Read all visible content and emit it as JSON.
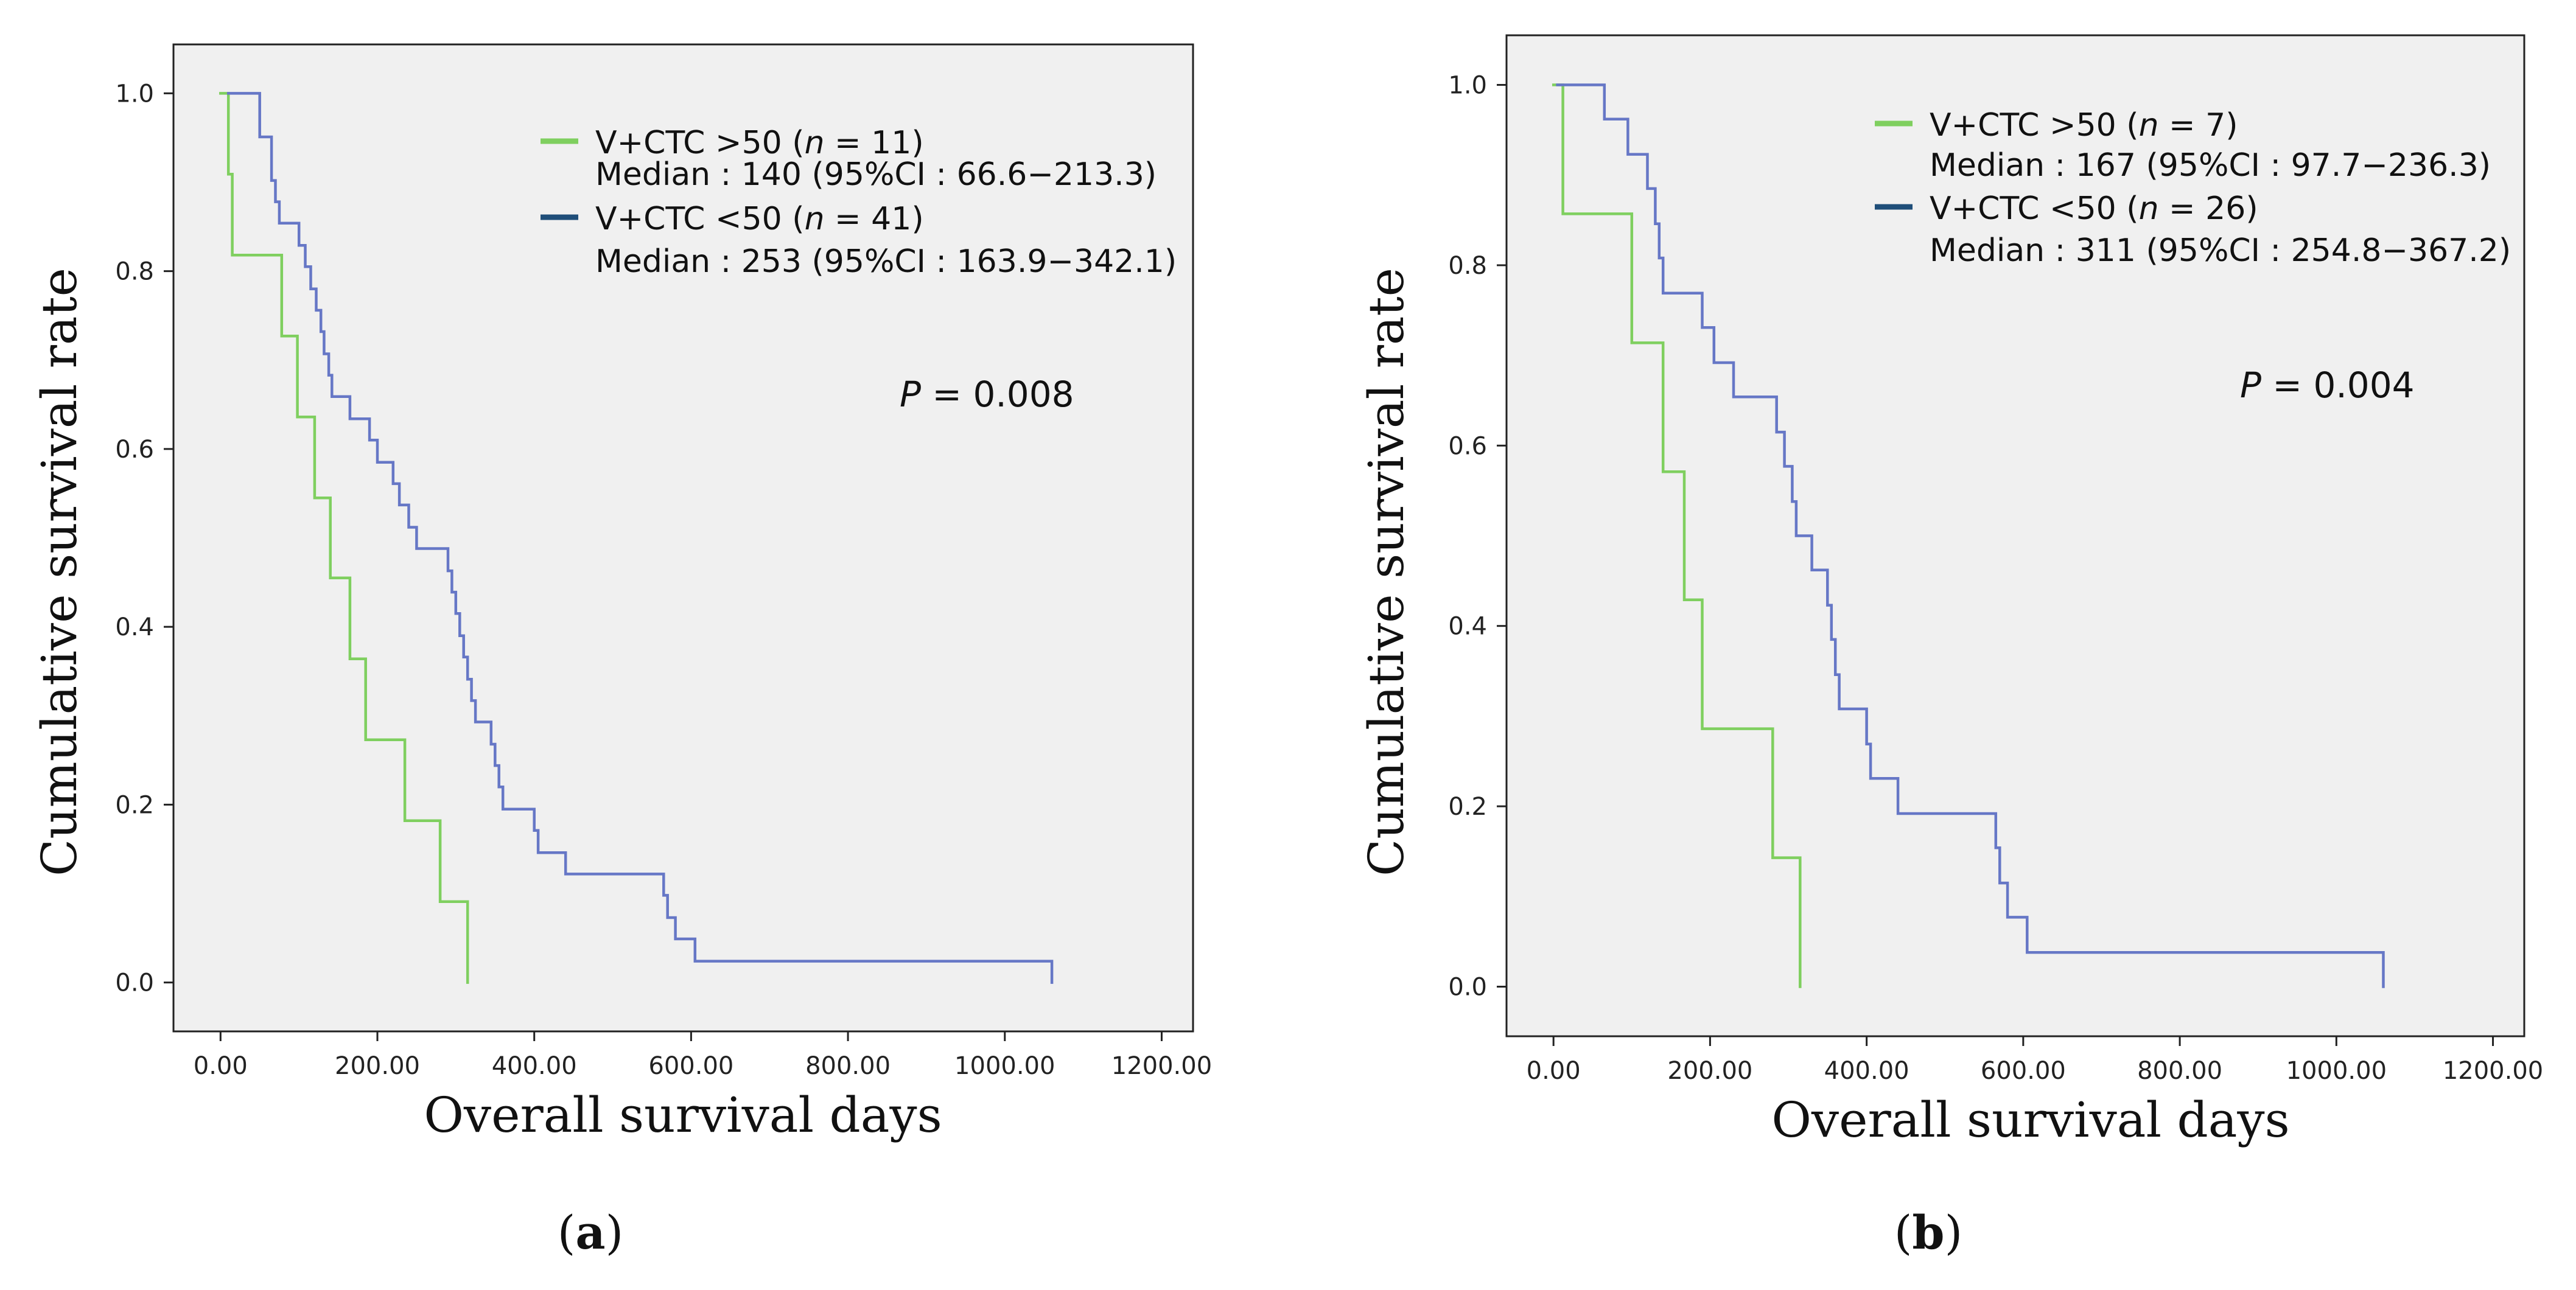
{
  "figure_panels": [
    "a",
    "b"
  ],
  "colors": {
    "plot_bg": "#f0f0f0",
    "series_high": "#7fcf5f",
    "series_low": "#6677c6",
    "legend_high_swatch": "#7fcf5f",
    "legend_low_swatch": "#1f4e79"
  },
  "chart_data": [
    {
      "type": "line",
      "panel_label": "a",
      "title": "",
      "xlabel": "Overall survival days",
      "ylabel": "Cumulative survival rate",
      "xlim": [
        -60,
        1240
      ],
      "ylim": [
        -0.055,
        1.055
      ],
      "xticks": [
        0,
        200,
        400,
        600,
        800,
        1000,
        1200
      ],
      "xtick_labels": [
        "0.00",
        "200.00",
        "400.00",
        "600.00",
        "800.00",
        "1000.00",
        "1200.00"
      ],
      "yticks": [
        0,
        0.2,
        0.4,
        0.6,
        0.8,
        1.0
      ],
      "ytick_labels": [
        "0.0",
        "0.2",
        "0.4",
        "0.6",
        "0.8",
        "1.0"
      ],
      "legend": [
        {
          "series": "V+CTC >50",
          "line1_prefix": "V+CTC >50 (",
          "n_symbol": "n",
          "line1_suffix": " = 11)",
          "line2": "Median : 140 (95%CI : 66.6−213.3)"
        },
        {
          "series": "V+CTC <50",
          "line1_prefix": "V+CTC <50 (",
          "n_symbol": "n",
          "line1_suffix": " = 41)",
          "line2": "Median : 253 (95%CI : 163.9−342.1)"
        }
      ],
      "annotation": {
        "p_symbol": "P",
        "text": " = 0.008"
      },
      "series": [
        {
          "name": "V+CTC >50",
          "color": "#7fcf5f",
          "points": [
            [
              0,
              1.0
            ],
            [
              10,
              0.909
            ],
            [
              15,
              0.818
            ],
            [
              78,
              0.727
            ],
            [
              98,
              0.636
            ],
            [
              120,
              0.545
            ],
            [
              140,
              0.455
            ],
            [
              165,
              0.364
            ],
            [
              185,
              0.273
            ],
            [
              235,
              0.182
            ],
            [
              280,
              0.091
            ],
            [
              315,
              0.0
            ]
          ]
        },
        {
          "name": "V+CTC <50",
          "color": "#6677c6",
          "points": [
            [
              10,
              1.0
            ],
            [
              50,
              0.951
            ],
            [
              65,
              0.902
            ],
            [
              70,
              0.878
            ],
            [
              75,
              0.854
            ],
            [
              100,
              0.829
            ],
            [
              108,
              0.805
            ],
            [
              115,
              0.78
            ],
            [
              122,
              0.756
            ],
            [
              128,
              0.732
            ],
            [
              132,
              0.707
            ],
            [
              138,
              0.683
            ],
            [
              142,
              0.659
            ],
            [
              165,
              0.634
            ],
            [
              190,
              0.61
            ],
            [
              200,
              0.585
            ],
            [
              220,
              0.561
            ],
            [
              228,
              0.537
            ],
            [
              240,
              0.512
            ],
            [
              250,
              0.488
            ],
            [
              290,
              0.463
            ],
            [
              295,
              0.439
            ],
            [
              300,
              0.415
            ],
            [
              305,
              0.39
            ],
            [
              310,
              0.366
            ],
            [
              315,
              0.341
            ],
            [
              320,
              0.317
            ],
            [
              325,
              0.293
            ],
            [
              345,
              0.268
            ],
            [
              350,
              0.244
            ],
            [
              355,
              0.22
            ],
            [
              360,
              0.195
            ],
            [
              400,
              0.171
            ],
            [
              405,
              0.146
            ],
            [
              440,
              0.122
            ],
            [
              565,
              0.098
            ],
            [
              570,
              0.073
            ],
            [
              580,
              0.049
            ],
            [
              605,
              0.024
            ],
            [
              1060,
              0.0
            ]
          ]
        }
      ]
    },
    {
      "type": "line",
      "panel_label": "b",
      "title": "",
      "xlabel": "Overall survival days",
      "ylabel": "Cumulative survival rate",
      "xlim": [
        -60,
        1240
      ],
      "ylim": [
        -0.055,
        1.055
      ],
      "xticks": [
        0,
        200,
        400,
        600,
        800,
        1000,
        1200
      ],
      "xtick_labels": [
        "0.00",
        "200.00",
        "400.00",
        "600.00",
        "800.00",
        "1000.00",
        "1200.00"
      ],
      "yticks": [
        0,
        0.2,
        0.4,
        0.6,
        0.8,
        1.0
      ],
      "ytick_labels": [
        "0.0",
        "0.2",
        "0.4",
        "0.6",
        "0.8",
        "1.0"
      ],
      "legend": [
        {
          "series": "V+CTC >50",
          "line1_prefix": "V+CTC >50 (",
          "n_symbol": "n",
          "line1_suffix": " = 7)",
          "line2": "Median : 167 (95%CI : 97.7−236.3)"
        },
        {
          "series": "V+CTC <50",
          "line1_prefix": "V+CTC <50 (",
          "n_symbol": "n",
          "line1_suffix": " = 26)",
          "line2": "Median : 311 (95%CI : 254.8−367.2)"
        }
      ],
      "annotation": {
        "p_symbol": "P",
        "text": " = 0.004"
      },
      "series": [
        {
          "name": "V+CTC >50",
          "color": "#7fcf5f",
          "points": [
            [
              0,
              1.0
            ],
            [
              12,
              0.857
            ],
            [
              100,
              0.714
            ],
            [
              140,
              0.571
            ],
            [
              167,
              0.429
            ],
            [
              190,
              0.286
            ],
            [
              280,
              0.143
            ],
            [
              315,
              0.0
            ]
          ]
        },
        {
          "name": "V+CTC <50",
          "color": "#6677c6",
          "points": [
            [
              5,
              1.0
            ],
            [
              65,
              0.962
            ],
            [
              95,
              0.923
            ],
            [
              120,
              0.885
            ],
            [
              130,
              0.846
            ],
            [
              135,
              0.808
            ],
            [
              140,
              0.769
            ],
            [
              190,
              0.731
            ],
            [
              205,
              0.692
            ],
            [
              230,
              0.654
            ],
            [
              285,
              0.615
            ],
            [
              295,
              0.577
            ],
            [
              305,
              0.538
            ],
            [
              310,
              0.5
            ],
            [
              330,
              0.462
            ],
            [
              350,
              0.423
            ],
            [
              355,
              0.385
            ],
            [
              360,
              0.346
            ],
            [
              365,
              0.308
            ],
            [
              400,
              0.269
            ],
            [
              405,
              0.231
            ],
            [
              440,
              0.192
            ],
            [
              565,
              0.154
            ],
            [
              570,
              0.115
            ],
            [
              580,
              0.077
            ],
            [
              605,
              0.038
            ],
            [
              1060,
              0.0
            ]
          ]
        }
      ]
    }
  ]
}
